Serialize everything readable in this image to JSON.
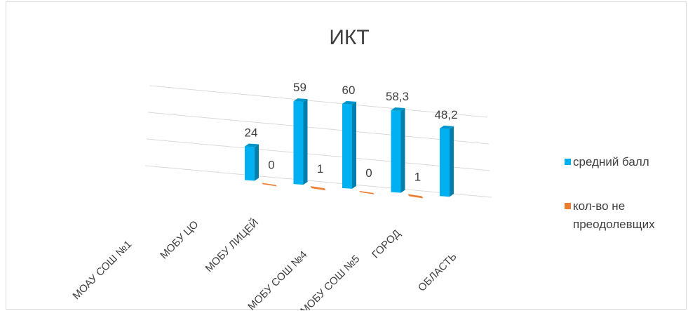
{
  "chart_data": {
    "type": "bar",
    "title": "ИКТ",
    "categories": [
      "МОАУ СОШ №1",
      "МОБУ ЦО",
      "МОБУ ЛИЦЕЙ",
      "МОБУ СОШ №4",
      "МОБУ СОШ №5",
      "ГОРОД",
      "ОБЛАСТЬ"
    ],
    "series": [
      {
        "name": "средний балл",
        "values": [
          null,
          null,
          24,
          59,
          60,
          58.3,
          48.2
        ],
        "labels": [
          "",
          "",
          "24",
          "59",
          "60",
          "58,3",
          "48,2"
        ],
        "color": "#00b0f0"
      },
      {
        "name": "кол-во не преодолевщих",
        "values": [
          null,
          null,
          0,
          1,
          0,
          1,
          null
        ],
        "labels": [
          "",
          "",
          "0",
          "1",
          "0",
          "1",
          ""
        ],
        "color": "#ed7d31"
      }
    ],
    "legend_position": "right",
    "grid": true,
    "three_d": true
  }
}
